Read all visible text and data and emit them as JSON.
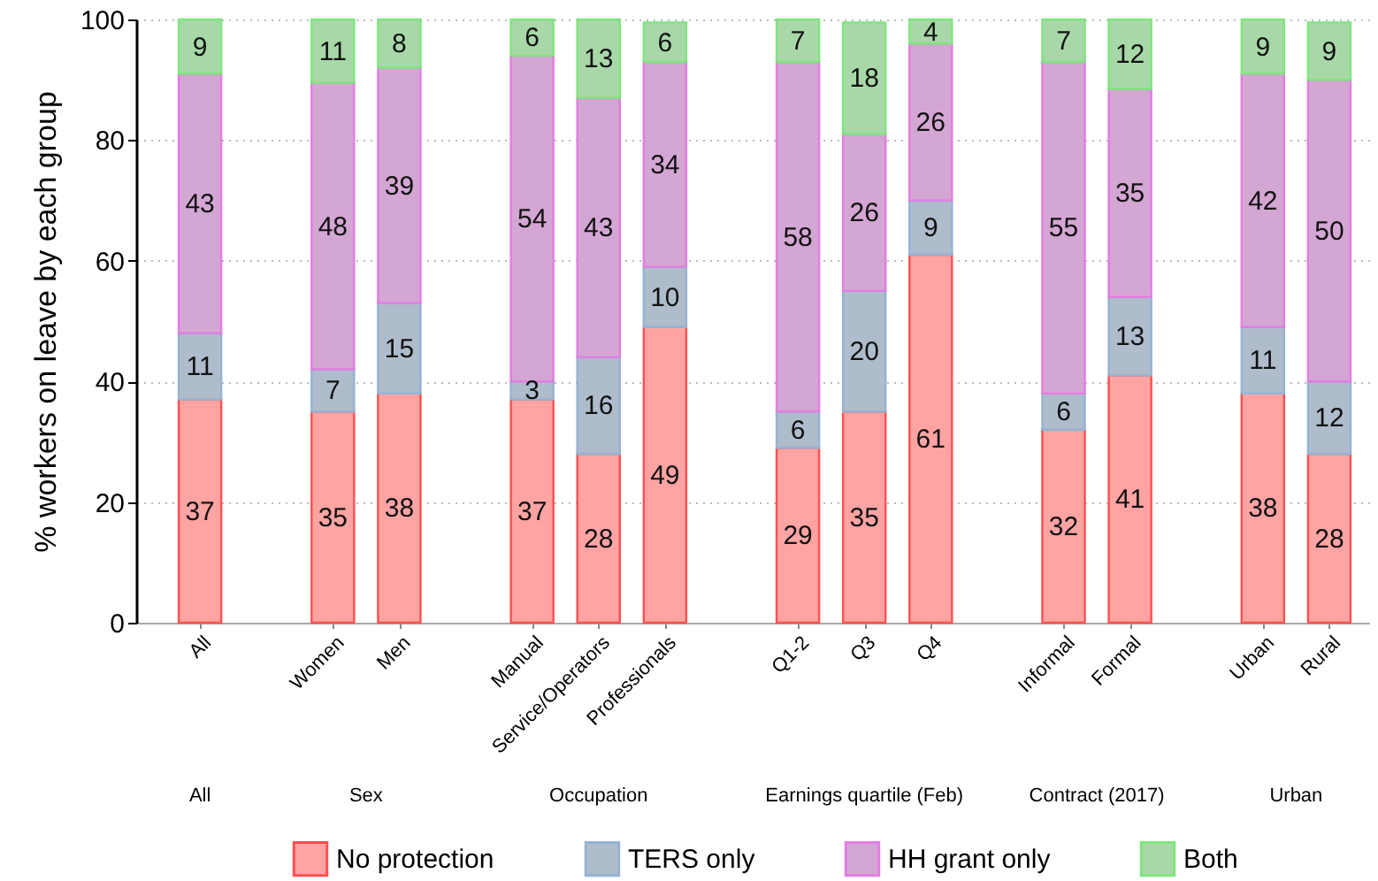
{
  "chart_data": {
    "type": "bar",
    "stacked": true,
    "ylabel": "% workers on leave by each group",
    "categories": [
      "All",
      null,
      "Women",
      "Men",
      null,
      "Manual",
      "Service/Operators",
      "Professionals",
      null,
      "Q1-2",
      "Q3",
      "Q4",
      null,
      "Informal",
      "Formal",
      null,
      "Urban",
      "Rural"
    ],
    "series": [
      {
        "name": "No protection",
        "color": "#ffa3a3",
        "values": [
          37,
          null,
          35,
          38,
          null,
          37,
          28,
          49,
          null,
          29,
          35,
          61,
          null,
          32,
          41,
          null,
          38,
          28
        ],
        "value_labels": [
          "37",
          null,
          "35",
          "38",
          null,
          "37",
          "28",
          "49",
          null,
          "29",
          "35",
          "61",
          null,
          "32",
          "41",
          null,
          "38",
          "28"
        ]
      },
      {
        "name": "TERS only",
        "color": "#aebccb",
        "values": [
          11,
          null,
          7,
          15,
          null,
          3,
          16,
          10,
          null,
          6,
          20,
          9,
          null,
          6,
          13,
          null,
          11,
          12
        ],
        "value_labels": [
          "11",
          null,
          "7",
          "15",
          null,
          "3",
          "16",
          "10",
          null,
          "6",
          "20",
          "9",
          null,
          "6",
          "13",
          null,
          "11",
          "12"
        ]
      },
      {
        "name": "HH grant only",
        "color": "#d4a6d4",
        "values": [
          43,
          null,
          47.5,
          39,
          null,
          54,
          43,
          34,
          null,
          58,
          26,
          26,
          null,
          55,
          34.5,
          null,
          42,
          50
        ],
        "value_labels": [
          "43",
          null,
          "48",
          "39",
          null,
          "54",
          "43",
          "34",
          null,
          "58",
          "26",
          "26",
          null,
          "55",
          "35",
          null,
          "42",
          "50"
        ]
      },
      {
        "name": "Both",
        "color": "#a8d8a8",
        "values": [
          9,
          null,
          10.5,
          8,
          null,
          6,
          13,
          6.5,
          null,
          7,
          18.5,
          4,
          null,
          7,
          11.5,
          null,
          9,
          9.5
        ],
        "value_labels": [
          "9",
          null,
          "11",
          "8",
          null,
          "6",
          "13",
          "6",
          null,
          "7",
          "18",
          "4",
          null,
          "7",
          "12",
          null,
          "9",
          "9"
        ]
      }
    ],
    "ylim": [
      0,
      100
    ],
    "yticks": [
      0,
      20,
      40,
      60,
      80,
      100
    ],
    "grid": "y",
    "legend": "bottom",
    "annotations": [
      "All",
      "Sex",
      "Occupation",
      "Earnings quartile (Feb)",
      "Contract (2017)",
      "Urban"
    ]
  }
}
